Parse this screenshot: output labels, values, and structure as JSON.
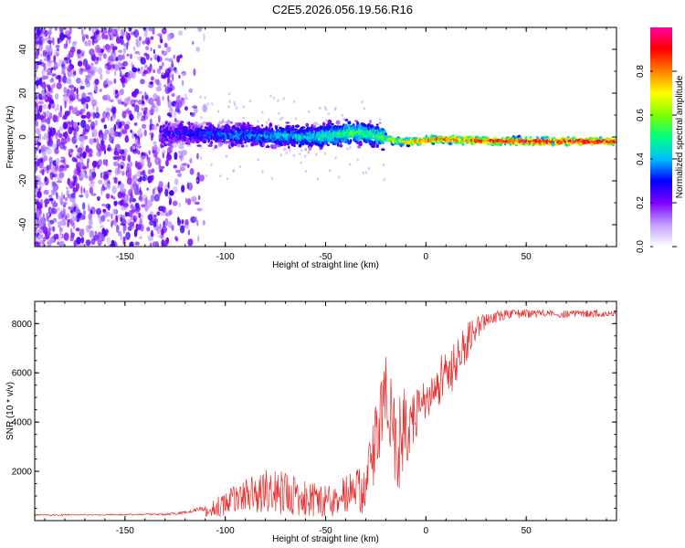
{
  "title": "C2E5.2026.056.19.56.R16",
  "colors": {
    "snr_line": "#e83030",
    "spectrogram_noise": "#8a3cf0",
    "spectrogram_core": "#00c0ff",
    "spectrogram_peak": "#e81010",
    "axis": "#000000",
    "background": "#ffffff"
  },
  "chart_data": [
    {
      "id": "spectrogram",
      "type": "heatmap",
      "xlabel": "Height of straight line (km)",
      "ylabel": "Frequency (Hz)",
      "xlim": [
        -195,
        95
      ],
      "ylim": [
        -50,
        50
      ],
      "x_ticks": [
        -150,
        -100,
        -50,
        0,
        50
      ],
      "y_ticks": [
        -40,
        -20,
        0,
        20,
        40
      ],
      "colorbar": {
        "label": "Normalized spectral amplitude",
        "range": [
          0,
          1
        ],
        "ticks": [
          0,
          0.2,
          0.4,
          0.6,
          0.8
        ],
        "tick_labels": [
          "0.0",
          "0.2",
          "0.4",
          "0.6",
          "0.8"
        ],
        "colormap": [
          "#ffffff",
          "#c0a0ff",
          "#7f00ff",
          "#0000ff",
          "#00c0ff",
          "#00ff80",
          "#80ff00",
          "#ffff00",
          "#ff8000",
          "#ff0000",
          "#ff00a0"
        ]
      },
      "signal_profile": {
        "x": [
          -130,
          -100,
          -75,
          -55,
          -45,
          -35,
          -25,
          -15,
          -5,
          5,
          20,
          50,
          92
        ],
        "center_freq_hz": [
          2,
          1,
          0.5,
          0,
          1,
          2,
          1,
          -2,
          -2,
          -1,
          -1.5,
          -2,
          -2
        ],
        "amplitude": [
          0.25,
          0.35,
          0.4,
          0.45,
          0.5,
          0.55,
          0.5,
          0.7,
          0.8,
          0.85,
          0.9,
          0.95,
          0.95
        ]
      }
    },
    {
      "id": "snr",
      "type": "line",
      "xlabel": "Height of straight line (km)",
      "ylabel": "SNR (10 * v/v)",
      "xlim": [
        -195,
        95
      ],
      "ylim": [
        0,
        8900
      ],
      "x_ticks": [
        -150,
        -100,
        -50,
        0,
        50
      ],
      "y_ticks": [
        2000,
        4000,
        6000,
        8000
      ],
      "series": [
        {
          "name": "SNR",
          "x": [
            -195,
            -150,
            -130,
            -120,
            -110,
            -100,
            -90,
            -80,
            -70,
            -60,
            -50,
            -40,
            -30,
            -25,
            -20,
            -15,
            -10,
            -5,
            0,
            5,
            10,
            15,
            20,
            25,
            30,
            40,
            60,
            80,
            92
          ],
          "y": [
            200,
            210,
            220,
            260,
            380,
            700,
            1000,
            1200,
            1100,
            900,
            800,
            1000,
            1300,
            3200,
            5000,
            3000,
            3700,
            4500,
            5000,
            5200,
            6300,
            6300,
            7200,
            7800,
            8100,
            8400,
            8400,
            8400,
            8400
          ],
          "noise_amplitude": [
            60,
            60,
            80,
            120,
            250,
            500,
            700,
            900,
            900,
            700,
            700,
            800,
            1000,
            1600,
            1800,
            2000,
            1800,
            1200,
            900,
            800,
            1200,
            1000,
            800,
            500,
            300,
            200,
            150,
            150,
            150
          ]
        }
      ]
    }
  ]
}
